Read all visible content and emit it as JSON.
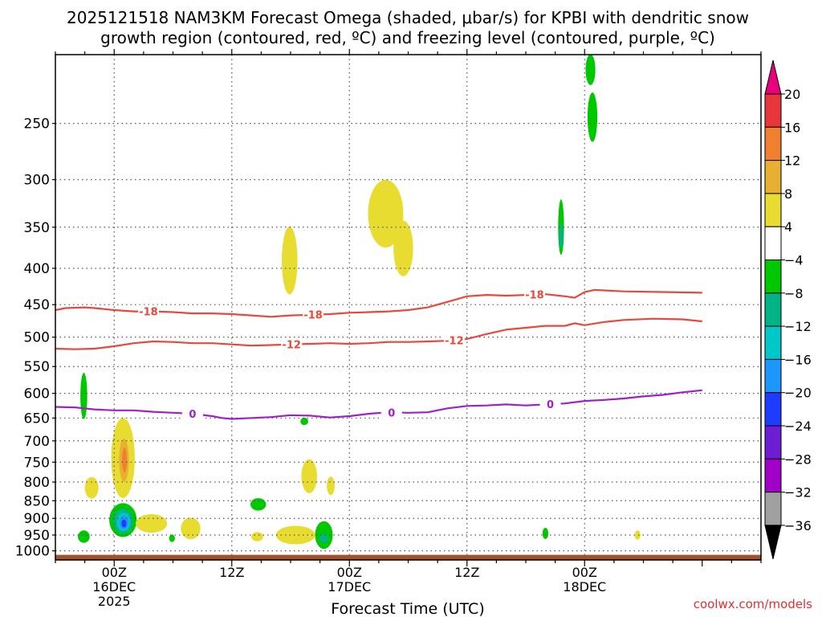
{
  "chart_data": {
    "type": "heatmap",
    "title_line1": "2025121518 NAM3KM Forecast Omega (shaded, μbar/s) for KPBI with dendritic snow",
    "title_line2": "growth region (contoured, red, ºC) and freezing level (contoured, purple, ºC)",
    "xlabel": "Forecast Time (UTC)",
    "ylabel": "",
    "credit": "coolwx.com/models",
    "x_range_hours": [
      -6,
      66
    ],
    "y_range_hPa": [
      1030,
      200
    ],
    "y_scale": "log",
    "y_ticks": [
      250,
      300,
      350,
      400,
      450,
      500,
      550,
      600,
      650,
      700,
      750,
      800,
      850,
      900,
      950,
      1000
    ],
    "x_ticks": [
      {
        "hour": 0,
        "lines": [
          "00Z",
          "16DEC",
          "2025"
        ]
      },
      {
        "hour": 12,
        "lines": [
          "12Z"
        ]
      },
      {
        "hour": 24,
        "lines": [
          "00Z",
          "17DEC"
        ]
      },
      {
        "hour": 36,
        "lines": [
          "12Z"
        ]
      },
      {
        "hour": 48,
        "lines": [
          "00Z",
          "18DEC"
        ]
      }
    ],
    "grid": true,
    "colorbar": {
      "placement": "right",
      "labels": [
        "20",
        "16",
        "12",
        "8",
        "4",
        "−4",
        "−8",
        "−12",
        "−16",
        "−20",
        "−24",
        "−28",
        "−32",
        "−36"
      ],
      "colors": [
        "#ffffff",
        "#e8363c",
        "#f08030",
        "#e8b030",
        "#e8dc30",
        "#ffffff",
        "#00c800",
        "#00b488",
        "#00c8c8",
        "#1e96ff",
        "#1e3cff",
        "#6e1ed2",
        "#a000c8",
        "#a0a0a0"
      ],
      "top_arrow_color": "#e8007c",
      "bottom_arrow_color": "#000000"
    },
    "contours": [
      {
        "value": "-18",
        "color": "#e8483c",
        "points": [
          [
            -6,
            458
          ],
          [
            -5,
            455
          ],
          [
            -3,
            454
          ],
          [
            -2,
            455
          ],
          [
            0,
            458
          ],
          [
            2,
            460
          ],
          [
            4,
            460
          ],
          [
            6,
            461
          ],
          [
            8,
            463
          ],
          [
            10,
            463
          ],
          [
            12,
            464
          ],
          [
            14,
            466
          ],
          [
            16,
            468
          ],
          [
            18,
            466
          ],
          [
            20,
            465
          ],
          [
            22,
            464
          ],
          [
            24,
            462
          ],
          [
            26,
            461
          ],
          [
            28,
            460
          ],
          [
            30,
            458
          ],
          [
            32,
            454
          ],
          [
            34,
            446
          ],
          [
            36,
            438
          ],
          [
            38,
            436
          ],
          [
            40,
            437
          ],
          [
            42,
            436
          ],
          [
            44,
            435
          ],
          [
            46,
            438
          ],
          [
            47,
            440
          ],
          [
            48,
            432
          ],
          [
            49,
            429
          ],
          [
            52,
            431
          ],
          [
            56,
            432
          ],
          [
            60,
            433
          ]
        ],
        "label_hours": [
          3.5,
          20.3,
          42.9
        ]
      },
      {
        "value": "-12",
        "color": "#e8483c",
        "points": [
          [
            -6,
            519
          ],
          [
            -4,
            520
          ],
          [
            -2,
            519
          ],
          [
            0,
            515
          ],
          [
            2,
            510
          ],
          [
            4,
            507
          ],
          [
            6,
            508
          ],
          [
            8,
            510
          ],
          [
            10,
            510
          ],
          [
            12,
            512
          ],
          [
            14,
            514
          ],
          [
            16,
            513
          ],
          [
            18,
            512
          ],
          [
            20,
            511
          ],
          [
            22,
            510
          ],
          [
            24,
            511
          ],
          [
            26,
            510
          ],
          [
            28,
            508
          ],
          [
            30,
            508
          ],
          [
            32,
            507
          ],
          [
            34,
            506
          ],
          [
            36,
            503
          ],
          [
            38,
            495
          ],
          [
            40,
            488
          ],
          [
            42,
            485
          ],
          [
            44,
            482
          ],
          [
            46,
            482
          ],
          [
            47,
            478
          ],
          [
            48,
            481
          ],
          [
            50,
            476
          ],
          [
            52,
            473
          ],
          [
            55,
            471
          ],
          [
            58,
            472
          ],
          [
            60,
            475
          ]
        ],
        "label_hours": [
          18.1,
          34.7
        ]
      },
      {
        "value": "0",
        "color": "#a020c8",
        "points": [
          [
            -6,
            627
          ],
          [
            -4,
            628
          ],
          [
            -2,
            632
          ],
          [
            0,
            634
          ],
          [
            2,
            634
          ],
          [
            4,
            637
          ],
          [
            6,
            639
          ],
          [
            8,
            641
          ],
          [
            10,
            646
          ],
          [
            11,
            650
          ],
          [
            12,
            652
          ],
          [
            14,
            650
          ],
          [
            16,
            648
          ],
          [
            18,
            644
          ],
          [
            20,
            645
          ],
          [
            22,
            649
          ],
          [
            24,
            646
          ],
          [
            26,
            641
          ],
          [
            28,
            638
          ],
          [
            30,
            639
          ],
          [
            32,
            638
          ],
          [
            34,
            630
          ],
          [
            36,
            625
          ],
          [
            38,
            624
          ],
          [
            40,
            622
          ],
          [
            42,
            624
          ],
          [
            44,
            622
          ],
          [
            46,
            620
          ],
          [
            48,
            615
          ],
          [
            50,
            613
          ],
          [
            52,
            610
          ],
          [
            54,
            606
          ],
          [
            56,
            603
          ],
          [
            58,
            598
          ],
          [
            60,
            594
          ]
        ],
        "label_hours": [
          8.0,
          28.3,
          44.5
        ]
      }
    ],
    "omega_cells": [
      {
        "t": 0.9,
        "p": 740,
        "dt": 1.2,
        "dlp": 0.13,
        "value": 5,
        "color": "#e8dc30"
      },
      {
        "t": 1.0,
        "p": 745,
        "dt": 0.5,
        "dlp": 0.07,
        "value": 9,
        "color": "#e8b030"
      },
      {
        "t": 1.05,
        "p": 745,
        "dt": 0.25,
        "dlp": 0.04,
        "value": 13,
        "color": "#f08030"
      },
      {
        "t": 0.9,
        "p": 905,
        "dt": 1.4,
        "dlp": 0.055,
        "value": -6,
        "color": "#00c800"
      },
      {
        "t": 0.9,
        "p": 908,
        "dt": 1.0,
        "dlp": 0.04,
        "value": -9,
        "color": "#00b488"
      },
      {
        "t": 0.95,
        "p": 910,
        "dt": 0.7,
        "dlp": 0.03,
        "value": -13,
        "color": "#00c8c8"
      },
      {
        "t": 1.0,
        "p": 912,
        "dt": 0.45,
        "dlp": 0.022,
        "value": -17,
        "color": "#1e96ff"
      },
      {
        "t": 1.0,
        "p": 915,
        "dt": 0.25,
        "dlp": 0.013,
        "value": -21,
        "color": "#1e3cff"
      },
      {
        "t": -3.1,
        "p": 605,
        "dt": 0.35,
        "dlp": 0.075,
        "value": -5,
        "color": "#00c800"
      },
      {
        "t": -3.1,
        "p": 955,
        "dt": 0.6,
        "dlp": 0.02,
        "value": -5,
        "color": "#00c800"
      },
      {
        "t": -2.3,
        "p": 815,
        "dt": 0.7,
        "dlp": 0.035,
        "value": 5,
        "color": "#e8dc30"
      },
      {
        "t": 3.8,
        "p": 915,
        "dt": 1.6,
        "dlp": 0.03,
        "value": 5,
        "color": "#e8dc30"
      },
      {
        "t": 5.9,
        "p": 960,
        "dt": 0.3,
        "dlp": 0.012,
        "value": -5,
        "color": "#00c800"
      },
      {
        "t": 7.8,
        "p": 930,
        "dt": 1.0,
        "dlp": 0.035,
        "value": 5,
        "color": "#e8dc30"
      },
      {
        "t": 14.7,
        "p": 860,
        "dt": 0.8,
        "dlp": 0.02,
        "value": -5,
        "color": "#00c800"
      },
      {
        "t": 14.6,
        "p": 955,
        "dt": 0.6,
        "dlp": 0.015,
        "value": 5,
        "color": "#e8dc30"
      },
      {
        "t": 17.9,
        "p": 390,
        "dt": 0.8,
        "dlp": 0.11,
        "value": 5,
        "color": "#e8dc30"
      },
      {
        "t": 18.5,
        "p": 950,
        "dt": 2.0,
        "dlp": 0.03,
        "value": 5,
        "color": "#e8dc30"
      },
      {
        "t": 19.9,
        "p": 785,
        "dt": 0.8,
        "dlp": 0.055,
        "value": 5,
        "color": "#e8dc30"
      },
      {
        "t": 22.1,
        "p": 810,
        "dt": 0.4,
        "dlp": 0.03,
        "value": 5,
        "color": "#e8dc30"
      },
      {
        "t": 21.4,
        "p": 950,
        "dt": 0.9,
        "dlp": 0.045,
        "value": -5,
        "color": "#00c800"
      },
      {
        "t": 21.4,
        "p": 960,
        "dt": 0.45,
        "dlp": 0.015,
        "value": -9,
        "color": "#00b488"
      },
      {
        "t": 19.4,
        "p": 657,
        "dt": 0.4,
        "dlp": 0.012,
        "value": -5,
        "color": "#00c800"
      },
      {
        "t": 27.7,
        "p": 335,
        "dt": 1.8,
        "dlp": 0.11,
        "value": 5,
        "color": "#e8dc30"
      },
      {
        "t": 29.5,
        "p": 375,
        "dt": 1.0,
        "dlp": 0.09,
        "value": 5,
        "color": "#e8dc30"
      },
      {
        "t": 45.6,
        "p": 350,
        "dt": 0.3,
        "dlp": 0.09,
        "value": -5,
        "color": "#00c800"
      },
      {
        "t": 45.6,
        "p": 360,
        "dt": 0.15,
        "dlp": 0.04,
        "value": -9,
        "color": "#00b488"
      },
      {
        "t": 44.0,
        "p": 945,
        "dt": 0.3,
        "dlp": 0.018,
        "value": -5,
        "color": "#00c800"
      },
      {
        "t": 48.8,
        "p": 245,
        "dt": 0.5,
        "dlp": 0.08,
        "value": -5,
        "color": "#00c800"
      },
      {
        "t": 48.6,
        "p": 210,
        "dt": 0.5,
        "dlp": 0.05,
        "value": -5,
        "color": "#00c800"
      },
      {
        "t": 53.4,
        "p": 950,
        "dt": 0.3,
        "dlp": 0.015,
        "value": 5,
        "color": "#e8dc30"
      }
    ],
    "terrain_color": "#a0522d"
  }
}
